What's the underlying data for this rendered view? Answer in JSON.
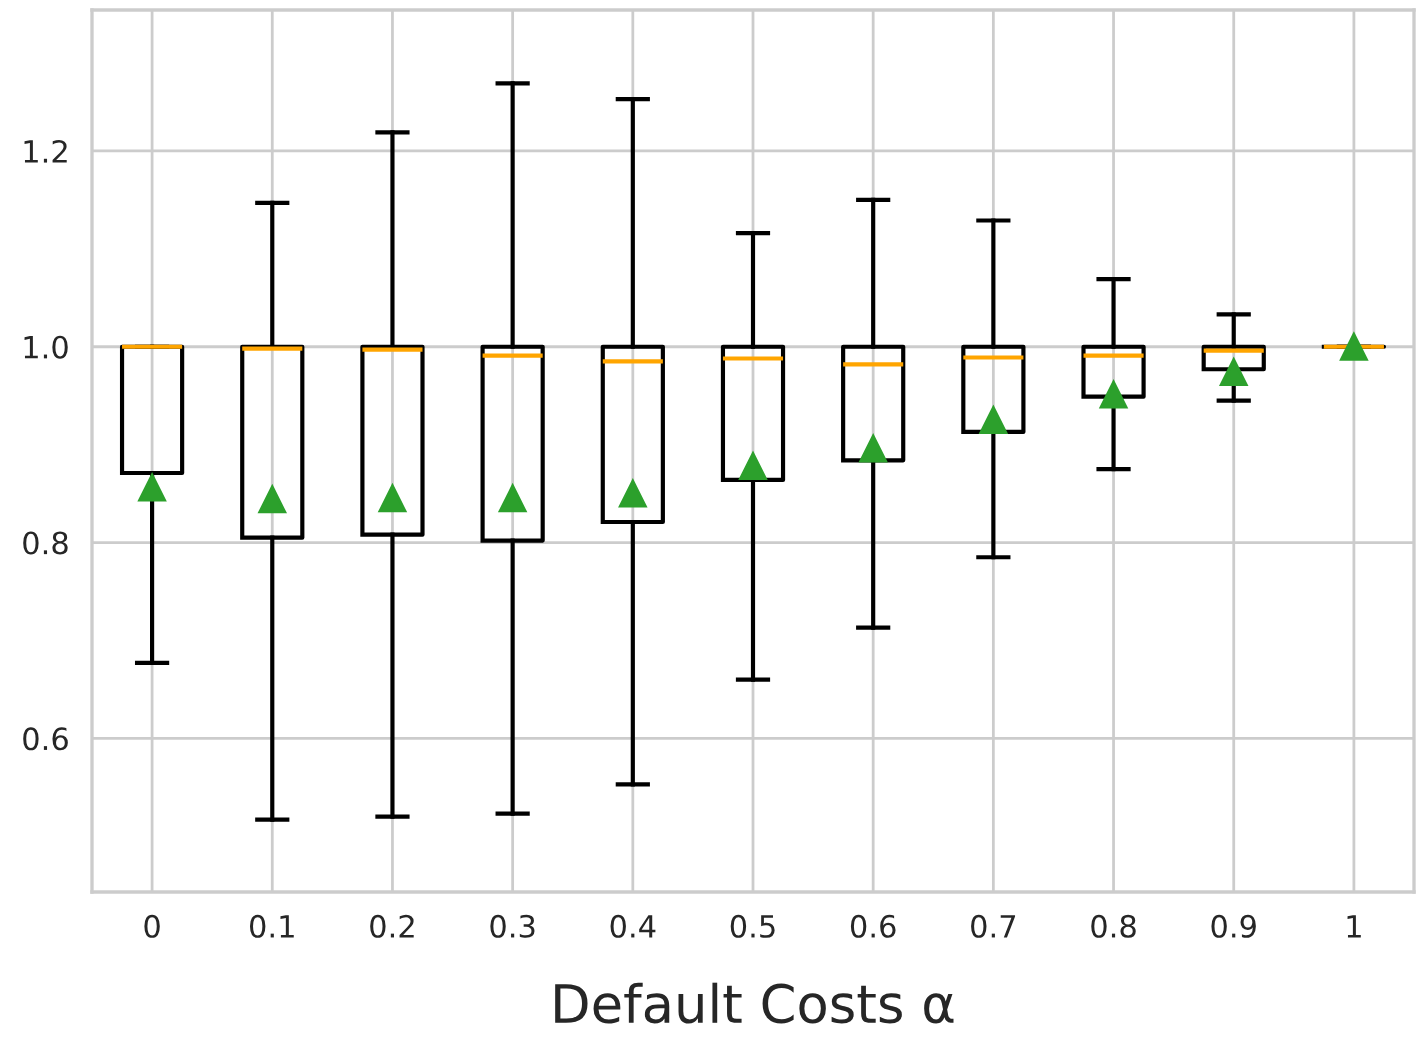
{
  "chart_data": {
    "type": "box",
    "xlabel": "Default Costs α",
    "categories": [
      "0",
      "0.1",
      "0.2",
      "0.3",
      "0.4",
      "0.5",
      "0.6",
      "0.7",
      "0.8",
      "0.9",
      "1"
    ],
    "boxes": [
      {
        "low": 0.677,
        "q1": 0.871,
        "median": 1.0,
        "q3": 1.0,
        "high": 1.0,
        "mean": 0.856
      },
      {
        "low": 0.517,
        "q1": 0.805,
        "median": 0.998,
        "q3": 1.0,
        "high": 1.147,
        "mean": 0.844
      },
      {
        "low": 0.52,
        "q1": 0.808,
        "median": 0.997,
        "q3": 1.0,
        "high": 1.219,
        "mean": 0.845
      },
      {
        "low": 0.523,
        "q1": 0.802,
        "median": 0.991,
        "q3": 1.0,
        "high": 1.269,
        "mean": 0.845
      },
      {
        "low": 0.553,
        "q1": 0.821,
        "median": 0.985,
        "q3": 1.0,
        "high": 1.253,
        "mean": 0.85
      },
      {
        "low": 0.66,
        "q1": 0.864,
        "median": 0.988,
        "q3": 1.0,
        "high": 1.116,
        "mean": 0.878
      },
      {
        "low": 0.713,
        "q1": 0.884,
        "median": 0.982,
        "q3": 1.0,
        "high": 1.15,
        "mean": 0.896
      },
      {
        "low": 0.785,
        "q1": 0.913,
        "median": 0.989,
        "q3": 1.0,
        "high": 1.129,
        "mean": 0.925
      },
      {
        "low": 0.875,
        "q1": 0.949,
        "median": 0.991,
        "q3": 1.0,
        "high": 1.069,
        "mean": 0.951
      },
      {
        "low": 0.945,
        "q1": 0.977,
        "median": 0.996,
        "q3": 1.0,
        "high": 1.033,
        "mean": 0.974
      },
      {
        "low": 1.0,
        "q1": 1.0,
        "median": 1.0,
        "q3": 1.0,
        "high": 1.0,
        "mean": 1.0
      }
    ],
    "color": "#000000",
    "marker": "triangle",
    "ylim": [
      0.443,
      1.344
    ],
    "yticks": [
      {
        "value": 0.6,
        "label": "0.6"
      },
      {
        "value": 0.8,
        "label": "0.8"
      },
      {
        "value": 1.0,
        "label": "1.0"
      },
      {
        "value": 1.2,
        "label": "1.2"
      }
    ],
    "grid": true
  }
}
